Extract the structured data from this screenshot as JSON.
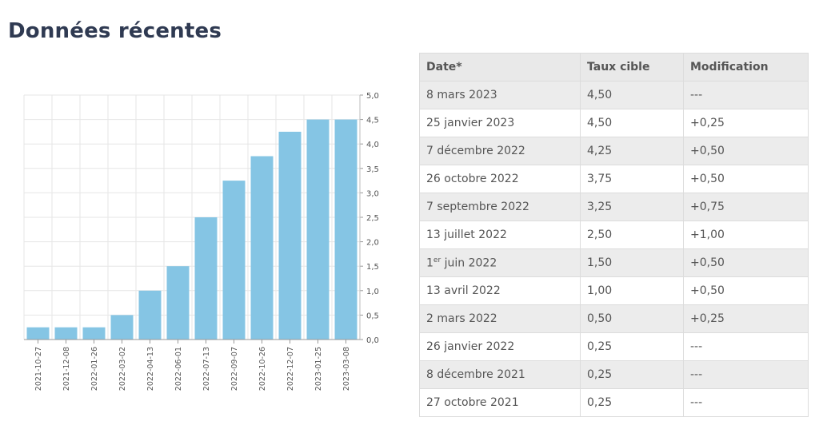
{
  "page": {
    "title": "Données récentes"
  },
  "chart_data": {
    "type": "bar",
    "categories": [
      "2021-10-27",
      "2021-12-08",
      "2022-01-26",
      "2022-03-02",
      "2022-04-13",
      "2022-06-01",
      "2022-07-13",
      "2022-09-07",
      "2022-10-26",
      "2022-12-07",
      "2023-01-25",
      "2023-03-08"
    ],
    "values": [
      0.25,
      0.25,
      0.25,
      0.5,
      1.0,
      1.5,
      2.5,
      3.25,
      3.75,
      4.25,
      4.5,
      4.5
    ],
    "ylim": [
      0,
      5
    ],
    "yticks": [
      "0,0",
      "0,5",
      "1,0",
      "1,5",
      "2,0",
      "2,5",
      "3,0",
      "3,5",
      "4,0",
      "4,5",
      "5,0"
    ],
    "yaxis_side": "right",
    "grid": true,
    "bar_color": "#85c5e4",
    "title": "",
    "xlabel": "",
    "ylabel": ""
  },
  "table": {
    "headers": {
      "date": "Date*",
      "rate": "Taux cible",
      "change": "Modification"
    },
    "rows": [
      {
        "date": "8 mars 2023",
        "rate": "4,50",
        "change": "---"
      },
      {
        "date": "25 janvier 2023",
        "rate": "4,50",
        "change": "+0,25"
      },
      {
        "date": "7 décembre 2022",
        "rate": "4,25",
        "change": "+0,50"
      },
      {
        "date": "26 octobre 2022",
        "rate": "3,75",
        "change": "+0,50"
      },
      {
        "date": "7 septembre 2022",
        "rate": "3,25",
        "change": "+0,75"
      },
      {
        "date": "13 juillet 2022",
        "rate": "2,50",
        "change": "+1,00"
      },
      {
        "date_num": "1",
        "date_sup": "er",
        "date_rest": " juin 2022",
        "rate": "1,50",
        "change": "+0,50"
      },
      {
        "date": "13 avril 2022",
        "rate": "1,00",
        "change": "+0,50"
      },
      {
        "date": "2 mars 2022",
        "rate": "0,50",
        "change": "+0,25"
      },
      {
        "date": "26 janvier 2022",
        "rate": "0,25",
        "change": "---"
      },
      {
        "date": "8 décembre 2021",
        "rate": "0,25",
        "change": "---"
      },
      {
        "date": "27 octobre 2021",
        "rate": "0,25",
        "change": "---"
      }
    ]
  }
}
